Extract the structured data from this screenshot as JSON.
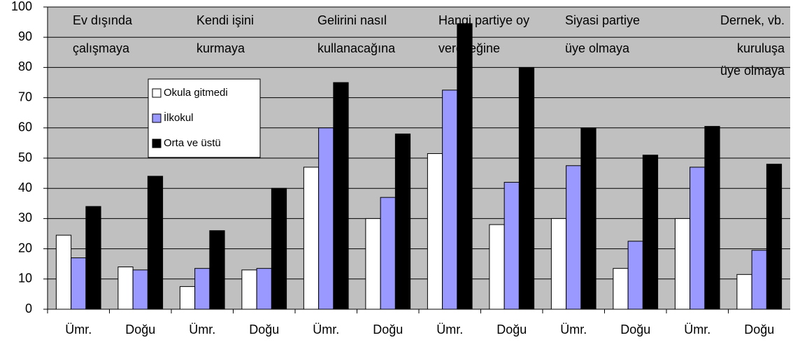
{
  "chart_data": {
    "type": "bar",
    "categories": [
      "Ümr.",
      "Doğu",
      "Ümr.",
      "Doğu",
      "Ümr.",
      "Doğu",
      "Ümr.",
      "Doğu",
      "Ümr.",
      "Doğu",
      "Ümr.",
      "Doğu"
    ],
    "series": [
      {
        "name": "Okula gitmedi",
        "color": "#ffffff",
        "values": [
          24.5,
          14,
          7.5,
          13,
          47,
          30,
          51.5,
          28,
          30,
          13.5,
          30,
          11.5
        ]
      },
      {
        "name": "İlkokul",
        "color": "#9999ff",
        "values": [
          17,
          13,
          13.5,
          13.5,
          60,
          37,
          72.5,
          42,
          47.5,
          22.5,
          47,
          19.5
        ]
      },
      {
        "name": "Orta ve üstü",
        "color": "#000000",
        "values": [
          34,
          44,
          26,
          40,
          75,
          58,
          94.5,
          80,
          60,
          51,
          60.5,
          48
        ]
      }
    ],
    "annotations": [
      [
        "Ev dışında",
        "çalışmaya"
      ],
      [
        "Kendi işini",
        "kurmaya"
      ],
      [
        "Gelirini nasıl",
        "kullanacağına"
      ],
      [
        "Hangi partiye oy",
        "vereceğine"
      ],
      [
        "Siyasi partiye",
        "üye olmaya"
      ],
      [
        "Dernek, vb.",
        "kuruluşa",
        "üye olmaya"
      ]
    ],
    "ylim": [
      0,
      100
    ],
    "yticks": [
      0,
      10,
      20,
      30,
      40,
      50,
      60,
      70,
      80,
      90,
      100
    ],
    "grid": true,
    "legend_position": "upper left"
  }
}
